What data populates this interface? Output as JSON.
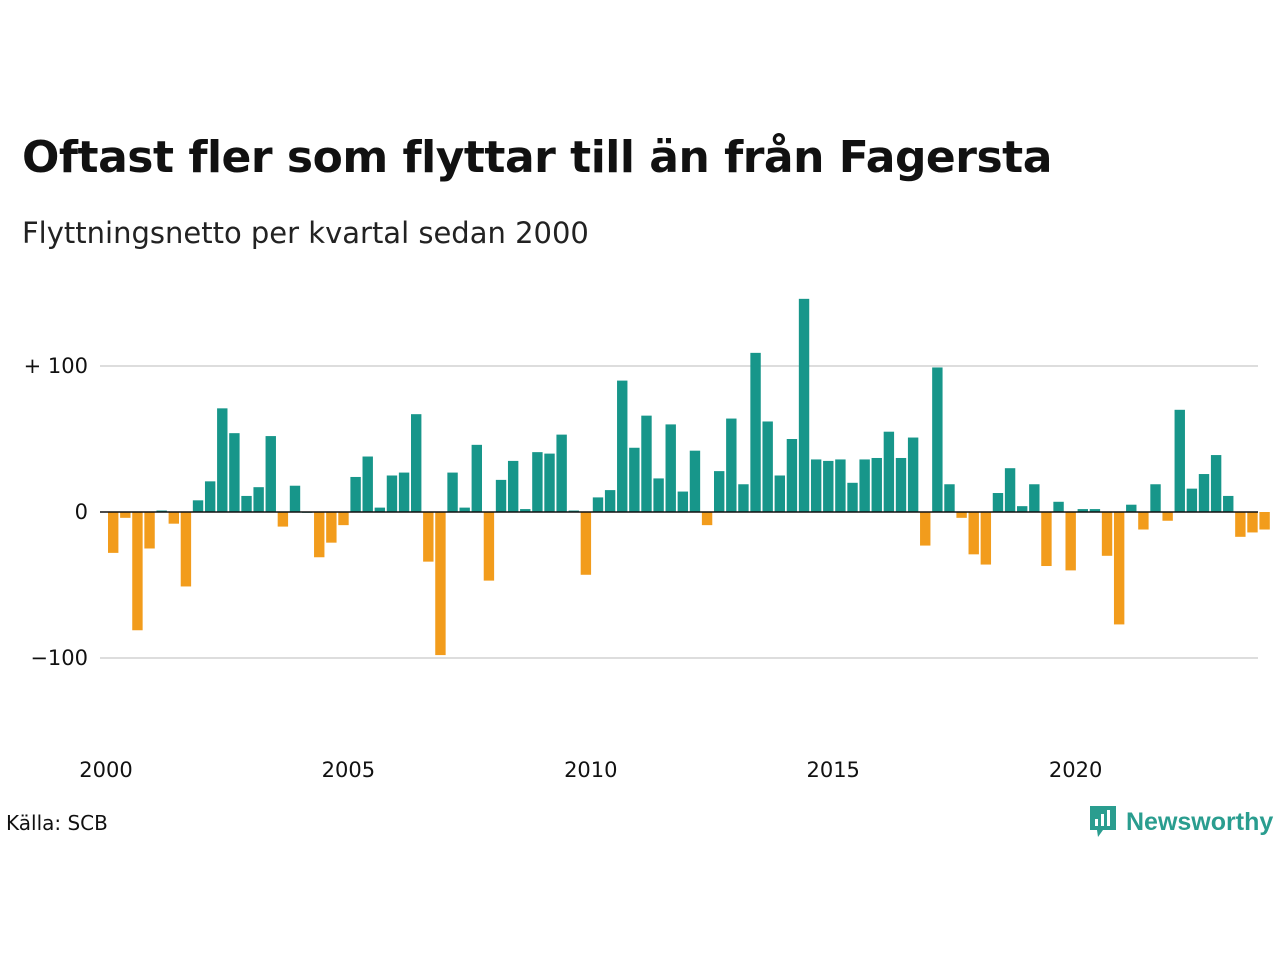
{
  "header": {
    "title": "Oftast fler som flyttar till än från Fagersta",
    "subtitle": "Flyttningsnetto per kvartal sedan 2000"
  },
  "footer": {
    "source": "Källa: SCB",
    "brand": "Newsworthy",
    "brand_icon": "newsworthy-logo-icon"
  },
  "colors": {
    "positive": "#17968a",
    "negative": "#f29c1c",
    "grid": "#dddddd",
    "zero_line": "#111111",
    "brand": "#2a9d8f"
  },
  "chart_data": {
    "type": "bar",
    "x_start": "2000 Q1",
    "x_tick_labels": [
      "2000",
      "2005",
      "2010",
      "2015",
      "2020"
    ],
    "y_tick_labels": [
      "+ 100",
      "0",
      "−100"
    ],
    "y_ticks": [
      100,
      0,
      -100
    ],
    "ylim": [
      -160,
      150
    ],
    "grid": true,
    "values": [
      -28,
      -4,
      -81,
      -25,
      1,
      -8,
      -51,
      8,
      21,
      71,
      54,
      11,
      17,
      52,
      -10,
      18,
      0,
      -31,
      -21,
      -9,
      24,
      38,
      3,
      25,
      27,
      67,
      -34,
      -98,
      27,
      3,
      46,
      -47,
      22,
      35,
      2,
      41,
      40,
      53,
      1,
      -43,
      10,
      15,
      90,
      44,
      66,
      23,
      60,
      14,
      42,
      -9,
      28,
      64,
      19,
      109,
      62,
      25,
      50,
      146,
      36,
      35,
      36,
      20,
      36,
      37,
      55,
      37,
      51,
      -23,
      99,
      19,
      -4,
      -29,
      -36,
      13,
      30,
      4,
      19,
      -37,
      7,
      -40,
      2,
      2,
      -30,
      -77,
      5,
      -12,
      19,
      -6,
      70,
      16,
      26,
      39,
      11,
      -17,
      -14,
      -12
    ]
  }
}
